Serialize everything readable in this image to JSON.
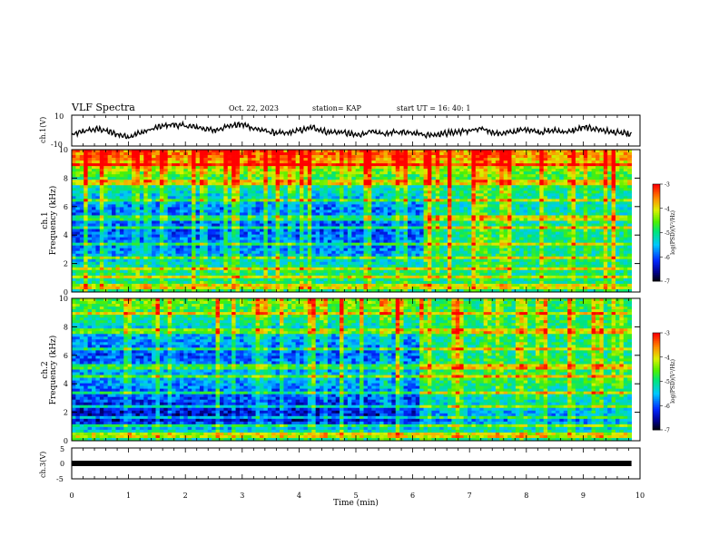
{
  "header": {
    "title": "VLF Spectra",
    "date": "Oct. 22, 2023",
    "station": "station= KAP",
    "start": "start  UT =   16: 40: 1"
  },
  "chart_data": [
    {
      "type": "line",
      "title": "",
      "ylabel": "ch.1(V)",
      "ylim": [
        -10,
        10
      ],
      "y_ticks": [
        "10",
        "-10"
      ],
      "xlim": [
        0,
        10
      ],
      "series": [
        {
          "x": [
            0.0,
            0.25,
            0.5,
            0.75,
            1.0,
            1.25,
            1.5,
            1.75,
            2.0,
            2.25,
            2.5,
            2.75,
            3.0,
            3.25,
            3.5,
            3.75,
            4.0,
            4.25,
            4.5,
            4.75,
            5.0,
            5.25,
            5.5,
            5.75,
            6.0,
            6.25,
            6.5,
            6.75,
            7.0,
            7.25,
            7.5,
            7.75,
            8.0,
            8.25,
            8.5,
            8.75,
            9.0,
            9.25,
            9.5,
            9.75,
            9.85
          ],
          "y": [
            -3,
            0,
            1,
            -2,
            -4,
            -1,
            2,
            4,
            3,
            2,
            0,
            3,
            4,
            1,
            -1,
            -2,
            0,
            2,
            -1,
            -1,
            -3,
            -1,
            -2,
            -1,
            -1,
            -3,
            -2,
            -1,
            0,
            1,
            -2,
            -1,
            1,
            -1,
            0,
            -1,
            2,
            1,
            -1,
            -2,
            -3
          ]
        }
      ]
    },
    {
      "type": "heatmap",
      "title": "",
      "ylabel": "ch.1\nFrequency (kHz)",
      "ylabel_lines": [
        "ch.1",
        "Frequency  (kHz)"
      ],
      "ylim": [
        0,
        10
      ],
      "y_ticks": [
        "0",
        "2",
        "4",
        "6",
        "8",
        "10"
      ],
      "xlim": [
        0,
        10
      ],
      "colorbar": {
        "label": "log(PSD)(V²/Hz)",
        "range": [
          -7,
          -3
        ],
        "ticks": [
          "-3",
          "-4",
          "-5",
          "-6",
          "-7"
        ]
      },
      "background_log_psd": [
        {
          "freq_khz": 9.5,
          "before_6_2min": -3.5,
          "after_6_2min": -3.7
        },
        {
          "freq_khz": 8.0,
          "before_6_2min": -4.8,
          "after_6_2min": -4.8
        },
        {
          "freq_khz": 6.0,
          "before_6_2min": -5.8,
          "after_6_2min": -5.2
        },
        {
          "freq_khz": 4.5,
          "before_6_2min": -6.0,
          "after_6_2min": -5.0
        },
        {
          "freq_khz": 3.0,
          "before_6_2min": -5.8,
          "after_6_2min": -5.0
        },
        {
          "freq_khz": 1.5,
          "before_6_2min": -5.0,
          "after_6_2min": -5.0
        },
        {
          "freq_khz": 0.5,
          "before_6_2min": -5.0,
          "after_6_2min": -5.0
        }
      ]
    },
    {
      "type": "heatmap",
      "title": "",
      "ylabel": "ch.2\nFrequency (kHz)",
      "ylabel_lines": [
        "ch.2",
        "Frequency  (kHz)"
      ],
      "ylim": [
        0,
        10
      ],
      "y_ticks": [
        "0",
        "2",
        "4",
        "6",
        "8",
        "10"
      ],
      "xlim": [
        0,
        10
      ],
      "colorbar": {
        "label": "log(PSD)(V²/Hz)",
        "range": [
          -7,
          -3
        ],
        "ticks": [
          "-3",
          "-4",
          "-5",
          "-6",
          "-7"
        ]
      },
      "background_log_psd": [
        {
          "freq_khz": 9.5,
          "before_6_2min": -4.5,
          "after_6_2min": -4.8
        },
        {
          "freq_khz": 8.0,
          "before_6_2min": -5.3,
          "after_6_2min": -4.9
        },
        {
          "freq_khz": 6.0,
          "before_6_2min": -6.0,
          "after_6_2min": -5.0
        },
        {
          "freq_khz": 4.5,
          "before_6_2min": -5.5,
          "after_6_2min": -4.8
        },
        {
          "freq_khz": 2.5,
          "before_6_2min": -6.2,
          "after_6_2min": -5.3
        },
        {
          "freq_khz": 1.5,
          "before_6_2min": -6.5,
          "after_6_2min": -5.8
        },
        {
          "freq_khz": 0.5,
          "before_6_2min": -5.0,
          "after_6_2min": -5.0
        }
      ]
    },
    {
      "type": "line",
      "title": "",
      "ylabel": "ch.3(V)",
      "ylim": [
        -5,
        5
      ],
      "y_ticks": [
        "5",
        "0",
        "-5"
      ],
      "xlim": [
        0,
        10
      ],
      "xlabel": "Time  (min)",
      "x_ticks": [
        "0",
        "1",
        "2",
        "3",
        "4",
        "5",
        "6",
        "7",
        "8",
        "9",
        "10"
      ],
      "series": [
        {
          "x": [
            0,
            9.85
          ],
          "y": [
            0,
            0
          ]
        }
      ]
    }
  ]
}
